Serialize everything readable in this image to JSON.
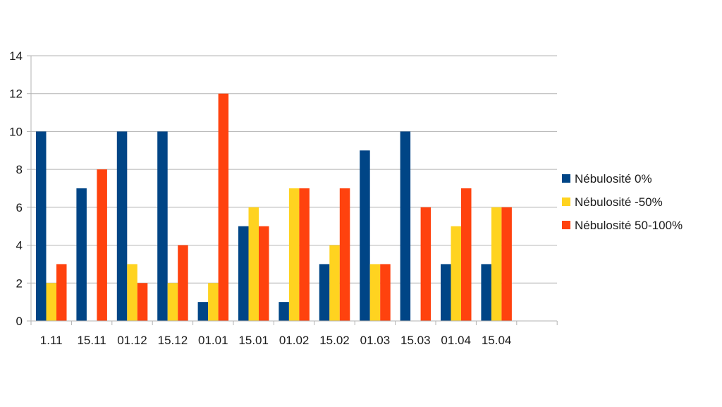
{
  "chart_data": {
    "type": "bar",
    "title": "",
    "xlabel": "",
    "ylabel": "",
    "ylim": [
      0,
      14
    ],
    "yticks": [
      0,
      2,
      4,
      6,
      8,
      10,
      12,
      14
    ],
    "grid": true,
    "legend_position": "right",
    "categories": [
      "1.11",
      "15.11",
      "01.12",
      "15.12",
      "01.01",
      "15.01",
      "01.02",
      "15.02",
      "01.03",
      "15.03",
      "01.04",
      "15.04"
    ],
    "series": [
      {
        "name": "Nébulosité 0%",
        "color": "#004586",
        "values": [
          10,
          7,
          10,
          10,
          1,
          5,
          1,
          3,
          9,
          10,
          3,
          3
        ]
      },
      {
        "name": "Nébulosité -50%",
        "color": "#FFD320",
        "values": [
          2,
          0,
          3,
          2,
          2,
          6,
          7,
          4,
          3,
          0,
          5,
          6
        ]
      },
      {
        "name": "Nébulosité 50-100%",
        "color": "#FF420E",
        "values": [
          3,
          8,
          2,
          4,
          12,
          5,
          7,
          7,
          3,
          6,
          7,
          6
        ]
      }
    ]
  }
}
